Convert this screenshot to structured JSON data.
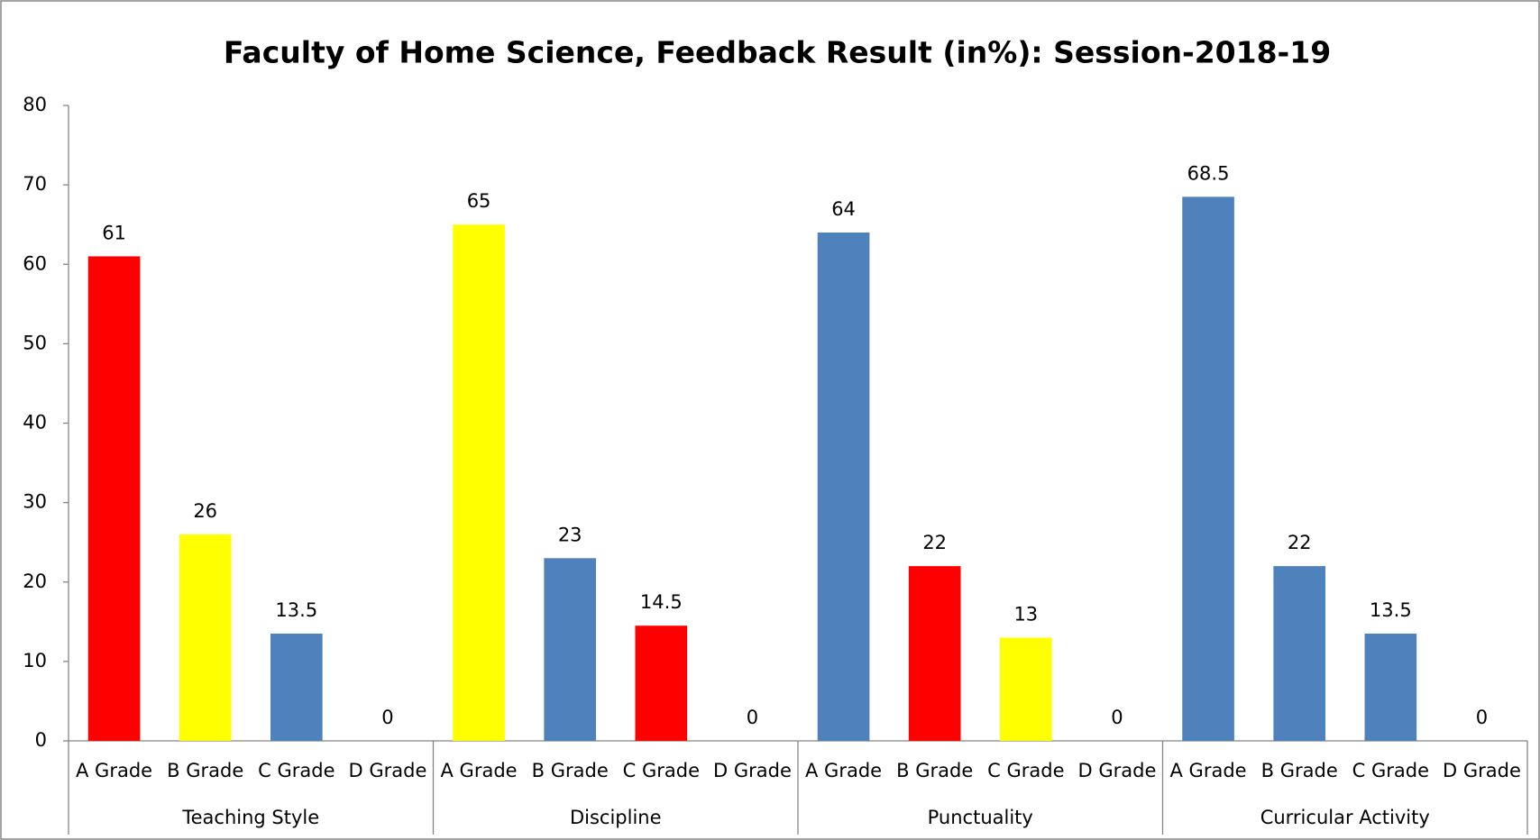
{
  "chart_data": {
    "type": "bar",
    "title": "Faculty of Home Science, Feedback Result (in%): Session-2018-19",
    "categories": [
      "A Grade",
      "B Grade",
      "C Grade",
      "D Grade",
      "A Grade",
      "B Grade",
      "C Grade",
      "D Grade",
      "A Grade",
      "B Grade",
      "C Grade",
      "D Grade",
      "A Grade",
      "B Grade",
      "C Grade",
      "D Grade"
    ],
    "groups": [
      "Teaching Style",
      "Discipline",
      "Punctuality",
      "Curricular Activity"
    ],
    "values": [
      61,
      26,
      13.5,
      0,
      65,
      23,
      14.5,
      0,
      64,
      22,
      13,
      0,
      68.5,
      22,
      13.5,
      0
    ],
    "colors": [
      "#ff0000",
      "#ffff00",
      "#4f81bd",
      "#4f81bd",
      "#ffff00",
      "#4f81bd",
      "#ff0000",
      "#4f81bd",
      "#4f81bd",
      "#ff0000",
      "#ffff00",
      "#4f81bd",
      "#4f81bd",
      "#4f81bd",
      "#4f81bd",
      "#4f81bd"
    ],
    "ylim": [
      0,
      80
    ],
    "yticks": [
      0,
      10,
      20,
      30,
      40,
      50,
      60,
      70,
      80
    ],
    "grid": false
  }
}
